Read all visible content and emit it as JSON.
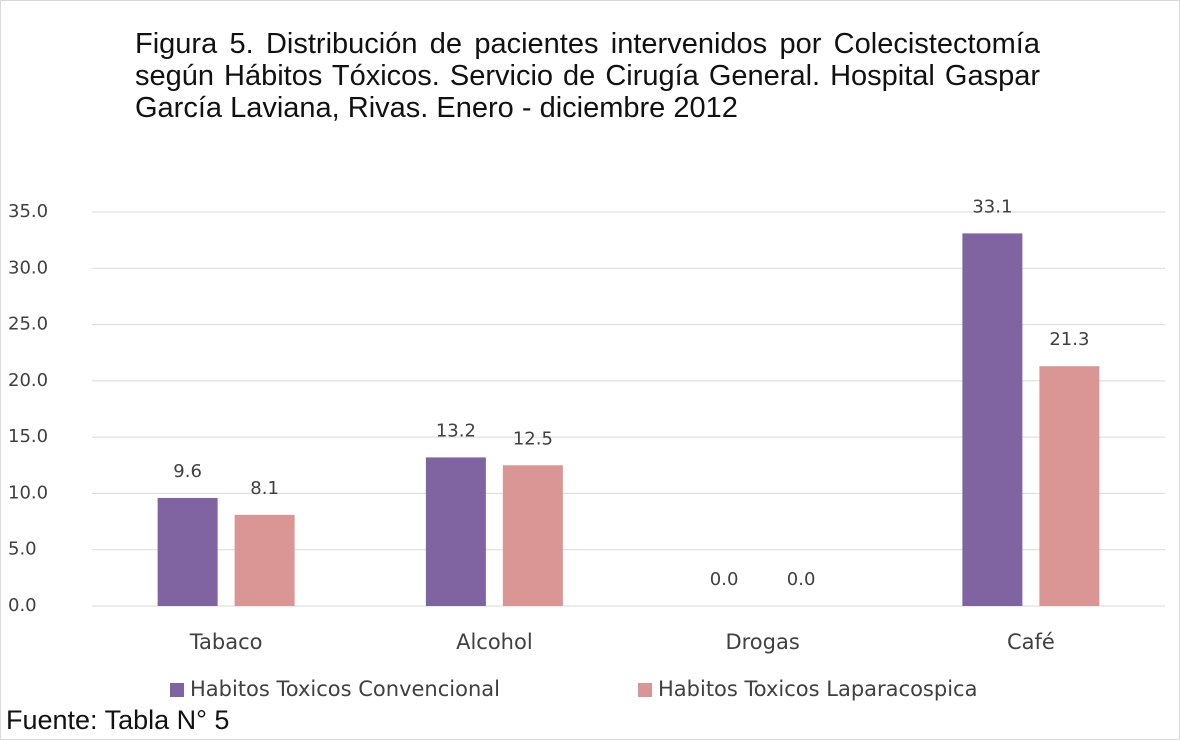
{
  "chart_data": {
    "type": "bar",
    "title": "Figura 5. Distribución de pacientes intervenidos por Colecistectomía según Hábitos Tóxicos. Servicio de Cirugía General. Hospital Gaspar García Laviana, Rivas. Enero - diciembre 2012",
    "categories": [
      "Tabaco",
      "Alcohol",
      "Drogas",
      "Café"
    ],
    "series": [
      {
        "name": "Habitos Toxicos Convencional",
        "color": "#8064a2",
        "values": [
          9.6,
          13.2,
          0,
          33.1
        ],
        "value_labels": [
          "9.6",
          "13.2",
          "0.0",
          "33.1"
        ]
      },
      {
        "name": "Habitos Toxicos Laparacospica",
        "color": "#d99694",
        "values": [
          8.1,
          12.5,
          0,
          21.3
        ],
        "value_labels": [
          "8.1",
          "12.5",
          "0.0",
          "21.3"
        ]
      }
    ],
    "ylim": [
      0,
      35
    ],
    "yticks": [
      {
        "value": 0,
        "label": "0.0"
      },
      {
        "value": 5,
        "label": "5.0"
      },
      {
        "value": 10,
        "label": "10.0"
      },
      {
        "value": 15,
        "label": "15.0"
      },
      {
        "value": 20,
        "label": "20.0"
      },
      {
        "value": 25,
        "label": "25.0"
      },
      {
        "value": 30,
        "label": "30.0"
      },
      {
        "value": 35,
        "label": "35.0"
      }
    ],
    "grid": true,
    "legend": "bottom",
    "source": "Fuente: Tabla N° 5"
  }
}
